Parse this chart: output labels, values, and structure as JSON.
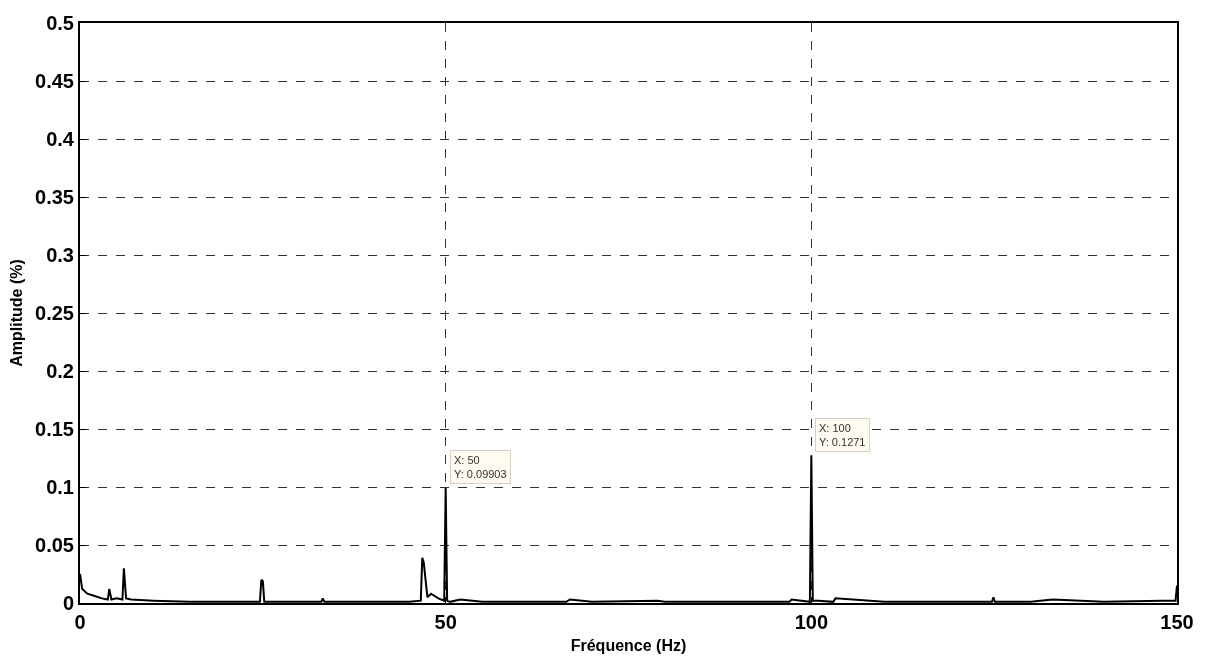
{
  "chart_data": {
    "type": "line",
    "xlabel": "Fréquence (Hz)",
    "ylabel": "Amplitude (%)",
    "xlim": [
      0,
      150
    ],
    "xticks": [
      0,
      50,
      100,
      150
    ],
    "ylim": [
      0,
      0.5
    ],
    "yticks": [
      0,
      0.05,
      0.1,
      0.15,
      0.2,
      0.25,
      0.3,
      0.35,
      0.4,
      0.45,
      0.5
    ],
    "grid": true,
    "marker": "none",
    "line_style": "solid",
    "series": [
      {
        "color": "#000000",
        "x": [
          0,
          0.3,
          1,
          2,
          3,
          3.8,
          4,
          4.3,
          5,
          5.8,
          6,
          6.3,
          7,
          10,
          15,
          20,
          24.6,
          24.8,
          25,
          25.2,
          26,
          30,
          33,
          33.2,
          33.4,
          40,
          45,
          46.6,
          46.8,
          47,
          47.5,
          48,
          49,
          49.8,
          50,
          50.2,
          50.6,
          52,
          55,
          60,
          66.5,
          67,
          70,
          79,
          80,
          90,
          97,
          97.3,
          99.8,
          100,
          100.2,
          101,
          103,
          103.3,
          110,
          120,
          124.7,
          124.9,
          125.1,
          130,
          133,
          140,
          148,
          149.8,
          150
        ],
        "values": [
          0.025,
          0.012,
          0.008,
          0.006,
          0.004,
          0.003,
          0.012,
          0.003,
          0.004,
          0.003,
          0.03,
          0.004,
          0.003,
          0.002,
          0.001,
          0.001,
          0.001,
          0.02,
          0.019,
          0.001,
          0.001,
          0.001,
          0.001,
          0.004,
          0.001,
          0.001,
          0.001,
          0.002,
          0.039,
          0.035,
          0.005,
          0.008,
          0.004,
          0.002,
          0.09903,
          0.002,
          0.001,
          0.003,
          0.001,
          0.001,
          0.001,
          0.003,
          0.001,
          0.002,
          0.001,
          0.001,
          0.001,
          0.003,
          0.001,
          0.1271,
          0.002,
          0.002,
          0.001,
          0.004,
          0.001,
          0.001,
          0.001,
          0.005,
          0.001,
          0.001,
          0.003,
          0.001,
          0.002,
          0.002,
          0.015
        ]
      }
    ],
    "annotations": [
      {
        "text": "X: 50\nY: 0.09903",
        "x": 50,
        "y": 0.09903
      },
      {
        "text": "X: 100\nY: 0.1271",
        "x": 100,
        "y": 0.1271
      }
    ]
  }
}
